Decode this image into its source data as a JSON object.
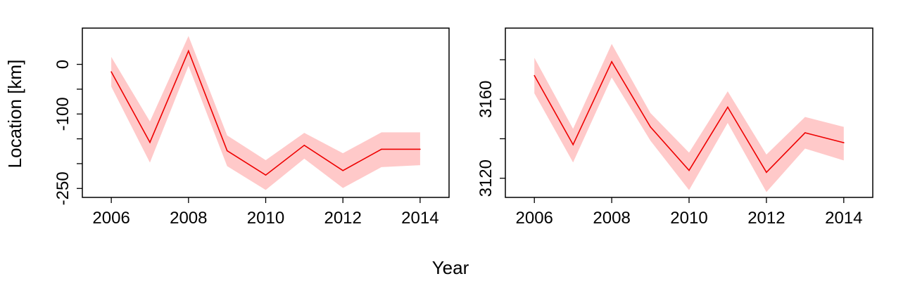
{
  "xlabel": "Year",
  "ylabel": "Location [km]",
  "colors": {
    "line": "#ee0000",
    "band": "#ffc9c9"
  },
  "chart_data": [
    {
      "type": "line",
      "x": [
        2006,
        2007,
        2008,
        2009,
        2010,
        2011,
        2012,
        2013,
        2014
      ],
      "series": [
        {
          "values": [
            -15,
            -157,
            27,
            -174,
            -223,
            -163,
            -214,
            -171,
            -171
          ],
          "upper": [
            15,
            -115,
            57,
            -143,
            -193,
            -138,
            -179,
            -137,
            -137
          ],
          "lower": [
            -45,
            -198,
            -3,
            -205,
            -253,
            -190,
            -249,
            -207,
            -203
          ]
        }
      ],
      "xticks": [
        2006,
        2008,
        2010,
        2012,
        2014
      ],
      "yticks": [
        0,
        -100,
        -250
      ],
      "yticks_minor": [
        0,
        -50,
        -100,
        -150,
        -200,
        -250
      ],
      "xlim": [
        2005.25,
        2014.75
      ],
      "ylim": [
        -268,
        73
      ]
    },
    {
      "type": "line",
      "x": [
        2006,
        2007,
        2008,
        2009,
        2010,
        2011,
        2012,
        2013,
        2014
      ],
      "series": [
        {
          "values": [
            3172,
            3137,
            3179,
            3146,
            3124,
            3156,
            3123,
            3143,
            3138
          ],
          "upper": [
            3181,
            3145,
            3188,
            3153,
            3133,
            3164,
            3132,
            3151,
            3146
          ],
          "lower": [
            3163,
            3128,
            3171,
            3139,
            3114,
            3148,
            3113,
            3135,
            3129
          ]
        }
      ],
      "xticks": [
        2006,
        2008,
        2010,
        2012,
        2014
      ],
      "yticks": [
        3120,
        3160
      ],
      "yticks_minor": [
        3120,
        3140,
        3160,
        3180
      ],
      "xlim": [
        2005.25,
        2014.75
      ],
      "ylim": [
        3110.3,
        3196
      ]
    }
  ]
}
